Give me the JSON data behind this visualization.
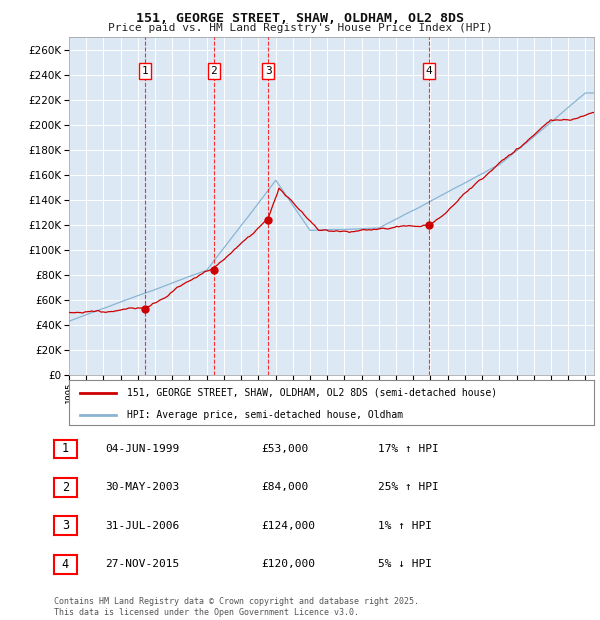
{
  "title": "151, GEORGE STREET, SHAW, OLDHAM, OL2 8DS",
  "subtitle": "Price paid vs. HM Land Registry's House Price Index (HPI)",
  "background_color": "#dce9f5",
  "grid_color": "#ffffff",
  "red_line_color": "#cc0000",
  "blue_line_color": "#8ab4d4",
  "ylim": [
    0,
    270000
  ],
  "yticks": [
    0,
    20000,
    40000,
    60000,
    80000,
    100000,
    120000,
    140000,
    160000,
    180000,
    200000,
    220000,
    240000,
    260000
  ],
  "legend_label_red": "151, GEORGE STREET, SHAW, OLDHAM, OL2 8DS (semi-detached house)",
  "legend_label_blue": "HPI: Average price, semi-detached house, Oldham",
  "transactions": [
    {
      "num": 1,
      "date": "04-JUN-1999",
      "price": 53000,
      "hpi_diff": "17% ↑ HPI",
      "year_x": 1999.43
    },
    {
      "num": 2,
      "date": "30-MAY-2003",
      "price": 84000,
      "hpi_diff": "25% ↑ HPI",
      "year_x": 2003.41
    },
    {
      "num": 3,
      "date": "31-JUL-2006",
      "price": 124000,
      "hpi_diff": "1% ↑ HPI",
      "year_x": 2006.58
    },
    {
      "num": 4,
      "date": "27-NOV-2015",
      "price": 120000,
      "hpi_diff": "5% ↓ HPI",
      "year_x": 2015.9
    }
  ],
  "footer": "Contains HM Land Registry data © Crown copyright and database right 2025.\nThis data is licensed under the Open Government Licence v3.0.",
  "xmin": 1995.0,
  "xmax": 2025.5
}
